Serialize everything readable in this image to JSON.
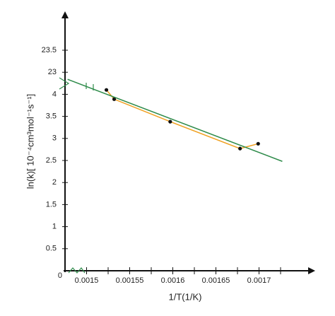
{
  "chart_data": {
    "type": "line",
    "x_label": "1/T(1/K)",
    "y_label": "ln(k)[ 10⁻⁴cm³mol⁻¹s⁻¹]",
    "xlim": [
      0.001475,
      0.00176
    ],
    "ylim": [
      0,
      5.8
    ],
    "xticks": [
      0.0015,
      0.00155,
      0.0016,
      0.00165,
      0.0017
    ],
    "xminor": [
      0.001525,
      0.001575,
      0.001625,
      0.001675,
      0.001725
    ],
    "yticks": [
      0,
      0.5,
      1,
      1.5,
      2,
      2.5,
      3,
      3.5,
      4
    ],
    "y_break_ticks": [
      23,
      23.5
    ],
    "series": [
      {
        "color": "#f0a020",
        "marker": true,
        "x": [
          0.001523,
          0.001532,
          0.001597,
          0.001678,
          0.001699
        ],
        "values": [
          4.1,
          3.89,
          3.38,
          2.77,
          2.88
        ]
      },
      {
        "color": "#2e8b4a",
        "marker": false,
        "x": [
          0.001478,
          0.001727
        ],
        "values": [
          4.34,
          2.48
        ]
      }
    ]
  }
}
